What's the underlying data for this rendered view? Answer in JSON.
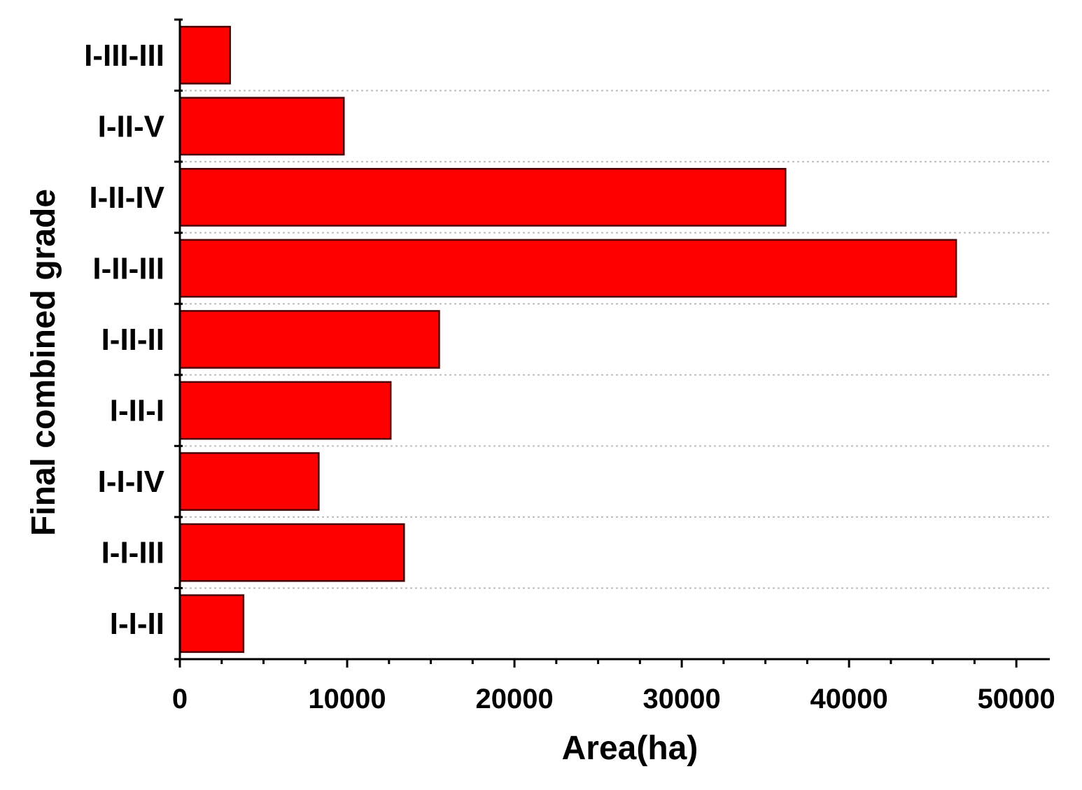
{
  "chart_data": {
    "type": "bar",
    "orientation": "horizontal",
    "categories": [
      "I-III-III",
      "I-II-V",
      "I-II-IV",
      "I-II-III",
      "I-II-II",
      "I-II-I",
      "I-I-IV",
      "I-I-III",
      "I-I-II"
    ],
    "values": [
      3000,
      9800,
      36200,
      46400,
      15500,
      12600,
      8300,
      13400,
      3800
    ],
    "xlabel": "Area(ha)",
    "ylabel": "Final combined grade",
    "xlim": [
      0,
      52000
    ],
    "xticks": [
      "0",
      "10000",
      "20000",
      "30000",
      "40000",
      "50000"
    ],
    "grid": "horizontal dotted",
    "legend": "none",
    "bar_color": "#ff0000"
  }
}
